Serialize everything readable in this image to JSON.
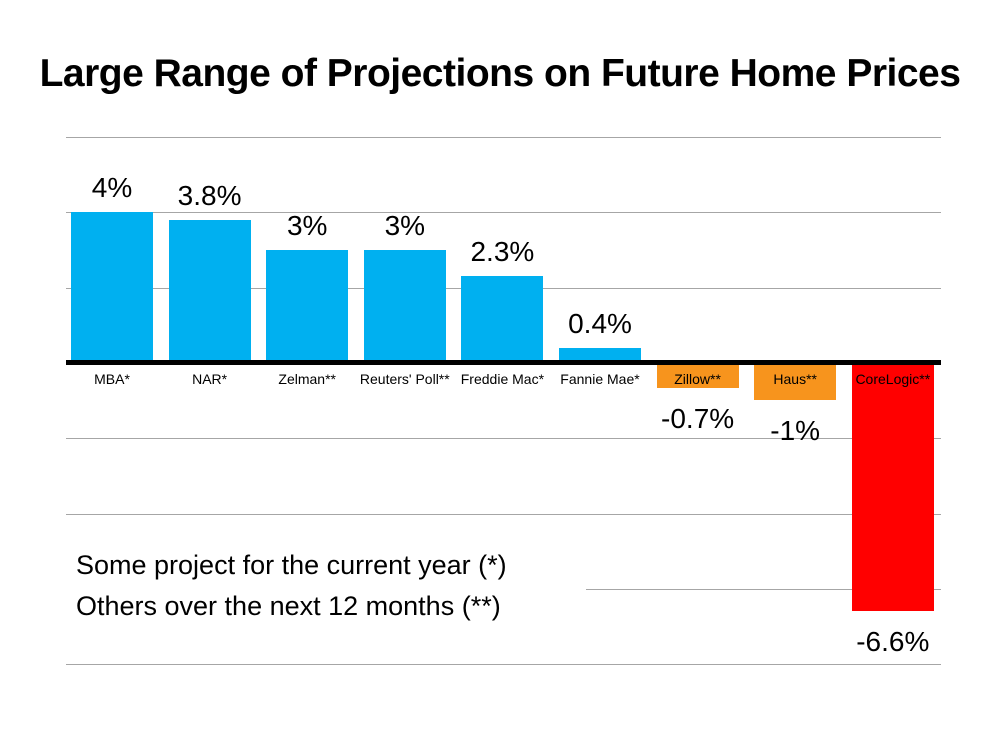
{
  "slide": {
    "title": "Large Range of Projections on Future Home Prices",
    "annotation": {
      "line1": "Some project for the current year (*)",
      "line2": "Others over the next 12 months (**)"
    }
  },
  "chart_data": {
    "type": "bar",
    "title": "Large Range of Projections on Future Home Prices",
    "categories": [
      "MBA*",
      "NAR*",
      "Zelman**",
      "Reuters' Poll**",
      "Freddie Mac*",
      "Fannie Mae*",
      "Zillow**",
      "Haus**",
      "CoreLogic**"
    ],
    "values": [
      4,
      3.8,
      3,
      3,
      2.3,
      0.4,
      -0.7,
      -1,
      -6.6
    ],
    "data_labels": [
      "4%",
      "3.8%",
      "3%",
      "3%",
      "2.3%",
      "0.4%",
      "-0.7%",
      "-1%",
      "-6.6%"
    ],
    "bar_colors": [
      "#00B0F0",
      "#00B0F0",
      "#00B0F0",
      "#00B0F0",
      "#00B0F0",
      "#00B0F0",
      "#F7941D",
      "#F7941D",
      "#FF0000"
    ],
    "xlabel": "",
    "ylabel": "",
    "ylim": [
      -8,
      6
    ],
    "gridline_interval": 2,
    "grid": true,
    "legend": "none",
    "category_label_position": "below axis for positive bars, inside top of bar for negative bars",
    "annotations": [
      "Some project for the current year (*)",
      "Others over the next 12 months (**)"
    ]
  },
  "style": {
    "positive_color": "#00B0F0",
    "moderate_negative_color": "#F7941D",
    "large_negative_color": "#FF0000",
    "gridline_color": "#A6A6A6",
    "axis_color": "#000000",
    "text_color": "#000000",
    "background": "#FFFFFF"
  }
}
